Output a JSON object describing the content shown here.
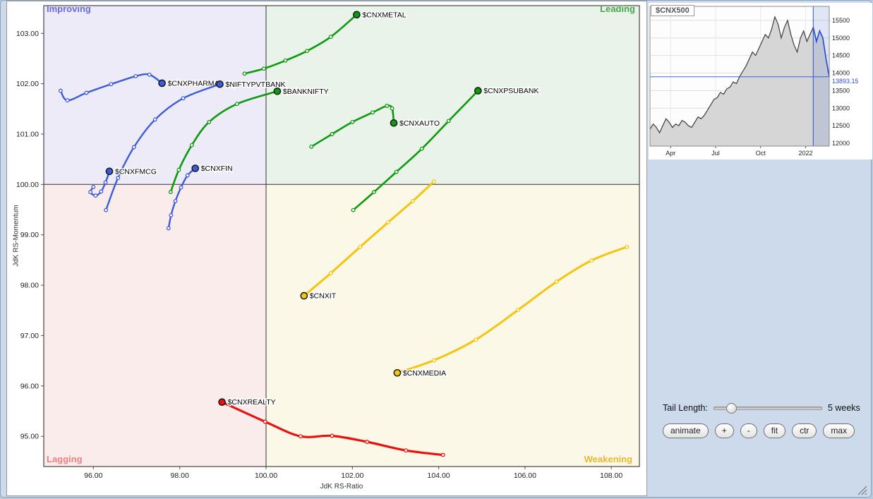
{
  "chart_data": [
    {
      "type": "line",
      "xlabel": "JdK RS-Ratio",
      "ylabel": "JdK RS-Momentum",
      "xlim": [
        94.85,
        108.65
      ],
      "ylim": [
        94.4,
        103.55
      ],
      "x_ticks": [
        96,
        98,
        100,
        102,
        104,
        106,
        108
      ],
      "y_ticks": [
        95,
        96,
        97,
        98,
        99,
        100,
        101,
        102,
        103
      ],
      "center": [
        100,
        100
      ],
      "legend_position": "none",
      "grid": false,
      "quadrants": {
        "improving": {
          "label": "Improving",
          "color": "#6a6ad8",
          "bg": "#ecebf7"
        },
        "leading": {
          "label": "Leading",
          "color": "#4aa64a",
          "bg": "#e9f3e9"
        },
        "lagging": {
          "label": "Lagging",
          "color": "#ef8080",
          "bg": "#faeceb"
        },
        "weakening": {
          "label": "Weakening",
          "color": "#e8b92e",
          "bg": "#fcf8e7"
        }
      },
      "series": [
        {
          "name": "$CNXPHARMA",
          "color": "#3b5bdb",
          "width": 2.4,
          "points": [
            [
              95.24,
              101.86
            ],
            [
              95.4,
              101.67
            ],
            [
              95.84,
              101.82
            ],
            [
              96.41,
              101.99
            ],
            [
              96.98,
              102.15
            ],
            [
              97.3,
              102.18
            ],
            [
              97.59,
              102.01
            ]
          ]
        },
        {
          "name": "$NIFTYPVTBANK",
          "color": "#3b5bdb",
          "width": 2.4,
          "points": [
            [
              96.29,
              99.49
            ],
            [
              96.57,
              100.13
            ],
            [
              96.94,
              100.74
            ],
            [
              97.43,
              101.29
            ],
            [
              98.08,
              101.71
            ],
            [
              98.93,
              101.99
            ]
          ]
        },
        {
          "name": "$CNXFMCG",
          "color": "#3b5bdb",
          "width": 2.4,
          "points": [
            [
              96.0,
              99.95
            ],
            [
              95.93,
              99.85
            ],
            [
              96.05,
              99.78
            ],
            [
              96.18,
              99.86
            ],
            [
              96.28,
              100.04
            ],
            [
              96.37,
              100.26
            ]
          ]
        },
        {
          "name": "$CNXFIN",
          "color": "#3b5bdb",
          "width": 2.4,
          "points": [
            [
              97.74,
              99.13
            ],
            [
              97.8,
              99.39
            ],
            [
              97.9,
              99.67
            ],
            [
              98.03,
              99.94
            ],
            [
              98.18,
              100.18
            ],
            [
              98.36,
              100.32
            ]
          ]
        },
        {
          "name": "$CNXMETAL",
          "color": "#0d9b0d",
          "width": 2.6,
          "points": [
            [
              99.5,
              102.2
            ],
            [
              99.95,
              102.3
            ],
            [
              100.45,
              102.46
            ],
            [
              100.95,
              102.65
            ],
            [
              101.5,
              102.93
            ],
            [
              102.1,
              103.37
            ]
          ]
        },
        {
          "name": "$BANKNIFTY",
          "color": "#0d9b0d",
          "width": 2.6,
          "points": [
            [
              97.79,
              99.85
            ],
            [
              97.98,
              100.29
            ],
            [
              98.28,
              100.78
            ],
            [
              98.68,
              101.24
            ],
            [
              99.33,
              101.6
            ],
            [
              100.26,
              101.85
            ]
          ]
        },
        {
          "name": "$CNXAUTO",
          "color": "#0d9b0d",
          "width": 2.6,
          "points": [
            [
              101.05,
              100.75
            ],
            [
              101.53,
              101.0
            ],
            [
              102.0,
              101.24
            ],
            [
              102.47,
              101.43
            ],
            [
              102.8,
              101.56
            ],
            [
              102.92,
              101.51
            ],
            [
              102.96,
              101.22
            ]
          ]
        },
        {
          "name": "$CNXPSUBANK",
          "color": "#0d9b0d",
          "width": 2.6,
          "points": [
            [
              102.02,
              99.49
            ],
            [
              102.5,
              99.85
            ],
            [
              103.02,
              100.25
            ],
            [
              103.61,
              100.71
            ],
            [
              104.23,
              101.26
            ],
            [
              104.91,
              101.86
            ]
          ]
        },
        {
          "name": "$CNXIT",
          "color": "#f3c50f",
          "width": 3.0,
          "points": [
            [
              103.89,
              100.06
            ],
            [
              103.4,
              99.67
            ],
            [
              102.83,
              99.25
            ],
            [
              102.18,
              98.76
            ],
            [
              101.5,
              98.24
            ],
            [
              100.88,
              97.79
            ]
          ]
        },
        {
          "name": "$CNXMEDIA",
          "color": "#f3c50f",
          "width": 3.0,
          "points": [
            [
              108.36,
              98.76
            ],
            [
              107.54,
              98.49
            ],
            [
              106.73,
              98.07
            ],
            [
              105.84,
              97.51
            ],
            [
              104.86,
              96.92
            ],
            [
              103.89,
              96.51
            ],
            [
              103.04,
              96.26
            ]
          ]
        },
        {
          "name": "$CNXREALTY",
          "color": "#ea1111",
          "width": 3.2,
          "points": [
            [
              104.1,
              94.63
            ],
            [
              103.24,
              94.72
            ],
            [
              102.34,
              94.89
            ],
            [
              101.53,
              95.01
            ],
            [
              100.8,
              95.0
            ],
            [
              99.98,
              95.29
            ],
            [
              98.98,
              95.68
            ]
          ]
        }
      ]
    },
    {
      "type": "area",
      "title": "$CNX500",
      "y_ticks": [
        15500,
        15000,
        14500,
        14000,
        13500,
        13000,
        12500,
        12000
      ],
      "x_labels": [
        "Apr",
        "Jul",
        "Oct",
        "2022"
      ],
      "ylim": [
        11920,
        15900
      ],
      "last_value": "13893.15",
      "highlight_last_n": 6,
      "line_color": "#3c3c3c",
      "fill_color": "#d6d6d6",
      "highlight_color": "#2b50d0",
      "band_fill": "rgba(80,115,215,0.16)",
      "values": [
        12400,
        12550,
        12450,
        12300,
        12500,
        12700,
        12600,
        12450,
        12550,
        12500,
        12650,
        12600,
        12500,
        12450,
        12600,
        12750,
        12700,
        12800,
        12950,
        13100,
        13250,
        13300,
        13450,
        13400,
        13550,
        13600,
        13750,
        13700,
        13900,
        14050,
        14200,
        14400,
        14600,
        14500,
        14700,
        14900,
        15100,
        15000,
        15250,
        15600,
        15400,
        15000,
        15300,
        15500,
        15100,
        14800,
        14600,
        15000,
        15200,
        14900,
        15100,
        15300,
        14900,
        15200,
        15000,
        14400,
        13893.15
      ]
    }
  ],
  "controls": {
    "tail_length_label": "Tail Length:",
    "tail_length_value": "5 weeks",
    "buttons": [
      "animate",
      "+",
      "-",
      "fit",
      "ctr",
      "max"
    ]
  }
}
